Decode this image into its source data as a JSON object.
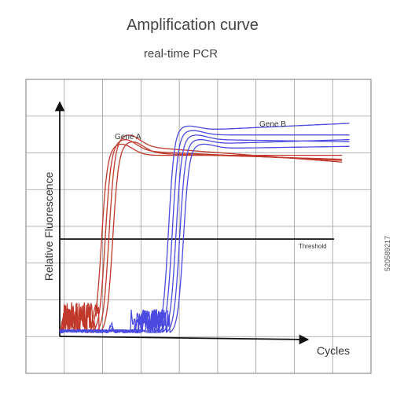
{
  "chart_data": {
    "type": "line",
    "title": "Amplification curve",
    "subtitle": "real-time PCR",
    "xlabel": "Cycles",
    "ylabel": "Relative Fluorescence",
    "threshold_label": "Threshold",
    "threshold_value": 0.43,
    "xlim": [
      0,
      40
    ],
    "ylim": [
      0,
      1
    ],
    "grid": true,
    "series": [
      {
        "name": "Gene A",
        "color": "#c0392b",
        "curves": [
          {
            "ct": 4.0,
            "plateau": 0.79,
            "drift": 0.0
          },
          {
            "ct": 4.5,
            "plateau": 0.81,
            "drift": -0.03
          },
          {
            "ct": 5.0,
            "plateau": 0.83,
            "drift": -0.05
          },
          {
            "ct": 5.5,
            "plateau": 0.8,
            "drift": -0.02
          }
        ]
      },
      {
        "name": "Gene B",
        "color": "#4a4ae0",
        "curves": [
          {
            "ct": 13.0,
            "plateau": 0.9,
            "drift": 0.03
          },
          {
            "ct": 13.5,
            "plateau": 0.88,
            "drift": 0.0
          },
          {
            "ct": 14.0,
            "plateau": 0.86,
            "drift": -0.01
          },
          {
            "ct": 14.5,
            "plateau": 0.84,
            "drift": 0.02
          },
          {
            "ct": 15.0,
            "plateau": 0.82,
            "drift": 0.01
          }
        ]
      }
    ]
  },
  "watermark": "520589217"
}
